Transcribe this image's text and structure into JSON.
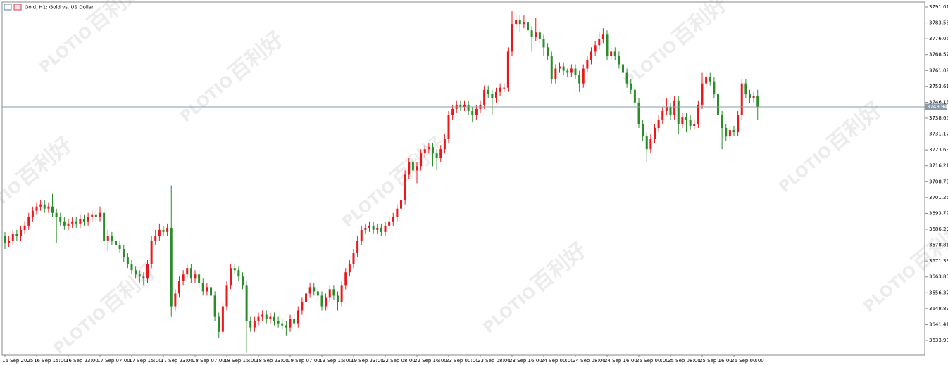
{
  "chart_data": {
    "type": "candlestick",
    "title": "Gold, H1:  Gold vs. US Dollar",
    "watermark": "百利好",
    "watermark_brand": "PLOTIO",
    "up_color": "#e8191c",
    "down_color": "#2b8c2b",
    "last_price": 3743.94,
    "ylim": [
      3626.97,
      3793.33
    ],
    "yticks": [
      3791.01,
      3783.53,
      3776.05,
      3768.57,
      3761.09,
      3753.61,
      3746.13,
      3738.65,
      3731.17,
      3723.69,
      3716.21,
      3708.73,
      3701.25,
      3693.77,
      3686.29,
      3678.81,
      3671.33,
      3663.85,
      3656.37,
      3648.89,
      3641.41,
      3633.93
    ],
    "categories": [
      "16 Sep 2025",
      null,
      null,
      null,
      null,
      null,
      null,
      null,
      "16 Sep 15:00",
      null,
      null,
      null,
      null,
      null,
      null,
      null,
      "16 Sep 23:00",
      null,
      null,
      null,
      null,
      null,
      null,
      null,
      "17 Sep 07:00",
      null,
      null,
      null,
      null,
      null,
      null,
      null,
      "17 Sep 15:00",
      null,
      null,
      null,
      null,
      null,
      null,
      null,
      "17 Sep 23:00",
      null,
      null,
      null,
      null,
      null,
      null,
      null,
      "18 Sep 07:00",
      null,
      null,
      null,
      null,
      null,
      null,
      null,
      "18 Sep 15:00",
      null,
      null,
      null,
      null,
      null,
      null,
      null,
      "18 Sep 23:00",
      null,
      null,
      null,
      null,
      null,
      null,
      null,
      "19 Sep 07:00",
      null,
      null,
      null,
      null,
      null,
      null,
      null,
      "19 Sep 15:00",
      null,
      null,
      null,
      null,
      null,
      null,
      null,
      "19 Sep 23:00",
      null,
      null,
      null,
      null,
      null,
      null,
      null,
      "22 Sep 08:00",
      null,
      null,
      null,
      null,
      null,
      null,
      null,
      "22 Sep 16:00",
      null,
      null,
      null,
      null,
      null,
      null,
      null,
      "23 Sep 00:00",
      null,
      null,
      null,
      null,
      null,
      null,
      null,
      "23 Sep 08:00",
      null,
      null,
      null,
      null,
      null,
      null,
      null,
      "23 Sep 16:00",
      null,
      null,
      null,
      null,
      null,
      null,
      null,
      "24 Sep 00:00",
      null,
      null,
      null,
      null,
      null,
      null,
      null,
      "24 Sep 08:00",
      null,
      null,
      null,
      null,
      null,
      null,
      null,
      "24 Sep 16:00",
      null,
      null,
      null,
      null,
      null,
      null,
      null,
      "25 Sep 00:00",
      null,
      null,
      null,
      null,
      null,
      null,
      null,
      "25 Sep 08:00",
      null,
      null,
      null,
      null,
      null,
      null,
      null,
      "25 Sep 16:00",
      null,
      null,
      null,
      null,
      null,
      null,
      null,
      "26 Sep 00:00",
      null,
      null,
      null,
      null,
      null,
      null
    ],
    "open": [
      3683,
      3680,
      3681,
      3684,
      3683,
      3686,
      3688,
      3692,
      3695,
      3697,
      3698,
      3696,
      3697,
      3694,
      3692,
      3690,
      3688,
      3689,
      3690,
      3689,
      3691,
      3690,
      3692,
      3693,
      3692,
      3694,
      3681,
      3683,
      3681,
      3679,
      3677,
      3673,
      3670,
      3667,
      3665,
      3664,
      3663,
      3670,
      3681,
      3683,
      3686,
      3685,
      3687,
      3650,
      3656,
      3662,
      3665,
      3668,
      3663,
      3665,
      3661,
      3657,
      3659,
      3655,
      3645,
      3638,
      3650,
      3660,
      3668,
      3667,
      3664,
      3660,
      3643,
      3640,
      3643,
      3645,
      3646,
      3644,
      3645,
      3643,
      3642,
      3641,
      3640,
      3644,
      3642,
      3648,
      3652,
      3656,
      3659,
      3657,
      3655,
      3650,
      3654,
      3658,
      3655,
      3652,
      3660,
      3666,
      3670,
      3675,
      3681,
      3686,
      3687,
      3688,
      3686,
      3687,
      3685,
      3688,
      3690,
      3692,
      3696,
      3700,
      3712,
      3718,
      3714,
      3716,
      3722,
      3724,
      3725,
      3722,
      3720,
      3724,
      3729,
      3740,
      3743,
      3745,
      3744,
      3745,
      3742,
      3740,
      3743,
      3745,
      3752,
      3750,
      3748,
      3751,
      3753,
      3753,
      3770,
      3783,
      3785,
      3783,
      3784,
      3780,
      3777,
      3779,
      3776,
      3772,
      3768,
      3757,
      3762,
      3763,
      3761,
      3760,
      3762,
      3759,
      3755,
      3762,
      3766,
      3770,
      3773,
      3776,
      3778,
      3768,
      3770,
      3768,
      3764,
      3760,
      3755,
      3752,
      3746,
      3736,
      3730,
      3724,
      3729,
      3734,
      3738,
      3742,
      3744,
      3740,
      3747,
      3736,
      3739,
      3738,
      3735,
      3736,
      3745,
      3755,
      3758,
      3756,
      3750,
      3740,
      3734,
      3730,
      3733,
      3732,
      3740,
      3755,
      3750,
      3748,
      3749
    ],
    "high": [
      3685,
      3683,
      3686,
      3686,
      3688,
      3690,
      3694,
      3697,
      3699,
      3700,
      3700,
      3699,
      3703,
      3696,
      3694,
      3692,
      3691,
      3692,
      3692,
      3693,
      3693,
      3694,
      3695,
      3695,
      3697,
      3696,
      3686,
      3685,
      3683,
      3681,
      3679,
      3675,
      3672,
      3669,
      3667,
      3666,
      3672,
      3683,
      3686,
      3689,
      3688,
      3689,
      3707,
      3658,
      3664,
      3667,
      3670,
      3670,
      3667,
      3667,
      3663,
      3661,
      3661,
      3657,
      3647,
      3652,
      3662,
      3670,
      3670,
      3669,
      3666,
      3662,
      3645,
      3645,
      3647,
      3648,
      3648,
      3647,
      3647,
      3645,
      3644,
      3643,
      3646,
      3646,
      3650,
      3654,
      3658,
      3661,
      3661,
      3659,
      3657,
      3656,
      3660,
      3660,
      3657,
      3662,
      3668,
      3672,
      3677,
      3683,
      3688,
      3689,
      3690,
      3690,
      3689,
      3689,
      3690,
      3692,
      3694,
      3698,
      3702,
      3714,
      3720,
      3720,
      3718,
      3724,
      3726,
      3727,
      3727,
      3724,
      3726,
      3731,
      3742,
      3745,
      3747,
      3747,
      3747,
      3747,
      3744,
      3745,
      3747,
      3754,
      3754,
      3752,
      3753,
      3755,
      3755,
      3772,
      3789,
      3787,
      3787,
      3787,
      3786,
      3782,
      3786,
      3781,
      3778,
      3774,
      3770,
      3764,
      3765,
      3765,
      3762,
      3764,
      3764,
      3761,
      3764,
      3768,
      3772,
      3775,
      3779,
      3781,
      3780,
      3772,
      3772,
      3770,
      3766,
      3762,
      3757,
      3754,
      3748,
      3738,
      3732,
      3731,
      3736,
      3740,
      3744,
      3748,
      3746,
      3749,
      3749,
      3741,
      3741,
      3740,
      3738,
      3747,
      3760,
      3760,
      3760,
      3758,
      3752,
      3742,
      3736,
      3735,
      3735,
      3742,
      3757,
      3757,
      3752,
      3751,
      3752
    ],
    "low": [
      3677,
      3678,
      3679,
      3681,
      3681,
      3684,
      3686,
      3690,
      3693,
      3695,
      3694,
      3694,
      3692,
      3680,
      3688,
      3686,
      3686,
      3687,
      3687,
      3687,
      3688,
      3688,
      3690,
      3690,
      3690,
      3679,
      3676,
      3679,
      3677,
      3675,
      3671,
      3668,
      3665,
      3663,
      3661,
      3660,
      3661,
      3668,
      3679,
      3681,
      3683,
      3683,
      3645,
      3648,
      3654,
      3660,
      3663,
      3661,
      3661,
      3659,
      3655,
      3655,
      3652,
      3643,
      3635,
      3636,
      3648,
      3658,
      3665,
      3662,
      3658,
      3628,
      3638,
      3638,
      3641,
      3643,
      3642,
      3642,
      3641,
      3640,
      3639,
      3636,
      3638,
      3640,
      3640,
      3646,
      3650,
      3654,
      3655,
      3653,
      3648,
      3648,
      3652,
      3653,
      3648,
      3650,
      3658,
      3664,
      3668,
      3673,
      3679,
      3684,
      3685,
      3684,
      3684,
      3683,
      3683,
      3686,
      3688,
      3690,
      3694,
      3698,
      3710,
      3712,
      3708,
      3714,
      3720,
      3722,
      3716,
      3714,
      3718,
      3722,
      3727,
      3738,
      3741,
      3742,
      3742,
      3740,
      3737,
      3738,
      3741,
      3743,
      3748,
      3740,
      3746,
      3749,
      3751,
      3751,
      3768,
      3781,
      3779,
      3781,
      3776,
      3770,
      3775,
      3774,
      3768,
      3766,
      3755,
      3755,
      3760,
      3759,
      3758,
      3758,
      3757,
      3751,
      3753,
      3760,
      3764,
      3768,
      3771,
      3774,
      3766,
      3766,
      3766,
      3762,
      3758,
      3753,
      3750,
      3744,
      3734,
      3728,
      3718,
      3722,
      3727,
      3732,
      3736,
      3740,
      3738,
      3738,
      3731,
      3734,
      3732,
      3733,
      3733,
      3734,
      3743,
      3753,
      3754,
      3748,
      3738,
      3724,
      3728,
      3728,
      3730,
      3730,
      3738,
      3748,
      3746,
      3746,
      3738
    ],
    "close": [
      3680,
      3681,
      3684,
      3683,
      3686,
      3688,
      3692,
      3695,
      3697,
      3698,
      3696,
      3697,
      3694,
      3692,
      3690,
      3688,
      3689,
      3690,
      3689,
      3691,
      3690,
      3692,
      3693,
      3692,
      3694,
      3681,
      3683,
      3681,
      3679,
      3677,
      3673,
      3670,
      3667,
      3665,
      3664,
      3663,
      3670,
      3681,
      3683,
      3686,
      3685,
      3687,
      3650,
      3656,
      3662,
      3665,
      3668,
      3663,
      3665,
      3661,
      3657,
      3659,
      3655,
      3645,
      3638,
      3650,
      3660,
      3668,
      3667,
      3664,
      3660,
      3643,
      3640,
      3643,
      3645,
      3646,
      3644,
      3645,
      3643,
      3642,
      3641,
      3640,
      3644,
      3642,
      3648,
      3652,
      3656,
      3659,
      3657,
      3655,
      3650,
      3654,
      3658,
      3655,
      3652,
      3660,
      3666,
      3670,
      3675,
      3681,
      3686,
      3687,
      3688,
      3686,
      3687,
      3685,
      3688,
      3690,
      3692,
      3696,
      3700,
      3712,
      3718,
      3714,
      3716,
      3722,
      3724,
      3725,
      3722,
      3720,
      3724,
      3729,
      3740,
      3743,
      3745,
      3744,
      3745,
      3742,
      3740,
      3743,
      3745,
      3752,
      3750,
      3748,
      3751,
      3753,
      3753,
      3770,
      3783,
      3785,
      3783,
      3784,
      3780,
      3777,
      3779,
      3776,
      3772,
      3768,
      3757,
      3762,
      3763,
      3761,
      3760,
      3762,
      3759,
      3755,
      3762,
      3766,
      3770,
      3773,
      3776,
      3778,
      3768,
      3770,
      3768,
      3764,
      3760,
      3755,
      3752,
      3746,
      3736,
      3730,
      3724,
      3729,
      3734,
      3738,
      3742,
      3744,
      3740,
      3747,
      3736,
      3739,
      3738,
      3735,
      3736,
      3745,
      3755,
      3758,
      3756,
      3750,
      3740,
      3734,
      3730,
      3733,
      3732,
      3740,
      3755,
      3750,
      3748,
      3749,
      3744
    ]
  }
}
